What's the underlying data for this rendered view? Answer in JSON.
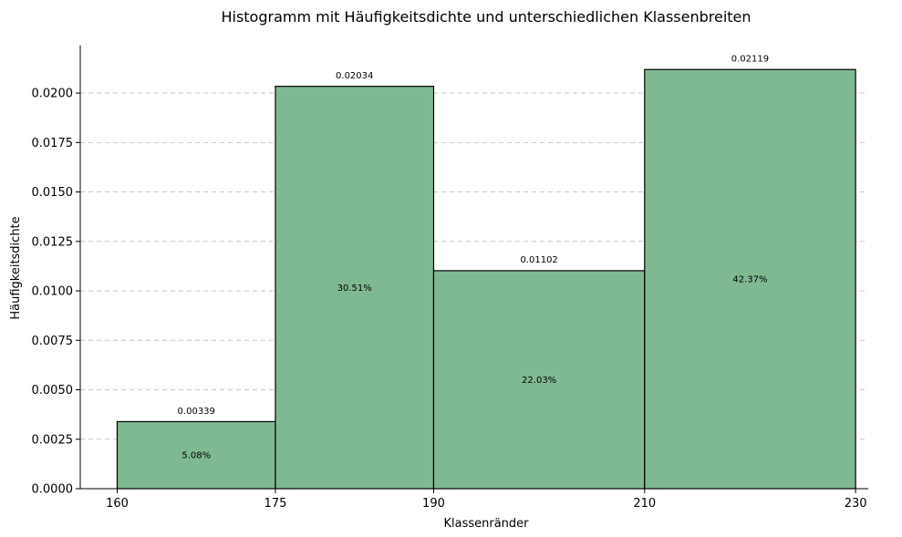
{
  "chart_data": {
    "type": "bar",
    "title": "Histogramm mit Häufigkeitsdichte und unterschiedlichen Klassenbreiten",
    "xlabel": "Klassenränder",
    "ylabel": "Häufigkeitsdichte",
    "bin_edges": [
      160,
      175,
      190,
      210,
      230
    ],
    "x_ticks": [
      "160",
      "175",
      "190",
      "210",
      "230"
    ],
    "xlim": [
      156.5,
      231.2
    ],
    "ylim": [
      0,
      0.0224
    ],
    "y_ticks": [
      "0.0000",
      "0.0025",
      "0.0050",
      "0.0075",
      "0.0100",
      "0.0125",
      "0.0150",
      "0.0175",
      "0.0200"
    ],
    "y_tick_values": [
      0,
      0.0025,
      0.005,
      0.0075,
      0.01,
      0.0125,
      0.015,
      0.0175,
      0.02
    ],
    "grid": "y-dashed",
    "bar_color": "#7fb992",
    "bars": [
      {
        "left": 160,
        "right": 175,
        "density": 0.00339,
        "density_label": "0.00339",
        "percent_label": "5.08%"
      },
      {
        "left": 175,
        "right": 190,
        "density": 0.02034,
        "density_label": "0.02034",
        "percent_label": "30.51%"
      },
      {
        "left": 190,
        "right": 210,
        "density": 0.01102,
        "density_label": "0.01102",
        "percent_label": "22.03%"
      },
      {
        "left": 210,
        "right": 230,
        "density": 0.02119,
        "density_label": "0.02119",
        "percent_label": "42.37%"
      }
    ]
  }
}
